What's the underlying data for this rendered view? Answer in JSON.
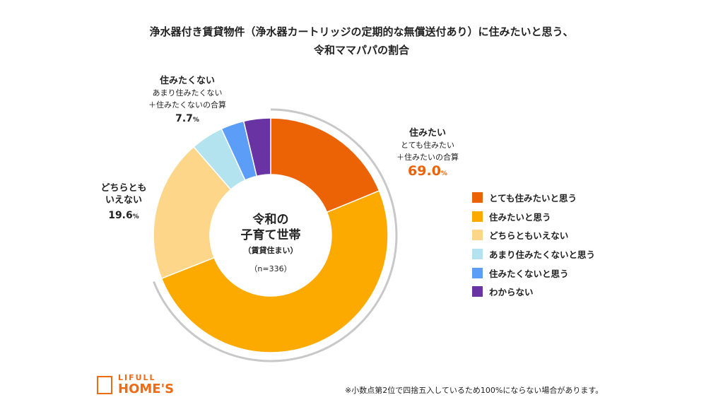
{
  "title": [
    "浄水器付き賃貸物件（浄水器カートリッジの定期的な無償送付あり）に住みたいと思う、",
    "令和ママパパの割合"
  ],
  "center": {
    "line1": "令和の",
    "line2": "子育て世帯",
    "line3": "（賃貸住まい）",
    "n": "（n=336）"
  },
  "callouts": {
    "want": {
      "title": "住みたい",
      "sub1": "とても住みたい",
      "sub2": "＋住みたいの合算",
      "value": "69.0",
      "unit": "%"
    },
    "neutral": {
      "title1": "どちらとも",
      "title2": "いえない",
      "value": "19.6",
      "unit": "%"
    },
    "not": {
      "title": "住みたくない",
      "sub1": "あまり住みたくない",
      "sub2": "＋住みたくないの合算",
      "value": "7.7",
      "unit": "%"
    }
  },
  "footnote": "※小数点第2位で四捨五入しているため100%にならない場合があります。",
  "logo": {
    "top": "LIFULL",
    "bottom": "HOME'S"
  },
  "chart_data": {
    "type": "pie",
    "donut": true,
    "categories": [
      "とても住みたいと思う",
      "住みたいと思う",
      "どちらともいえない",
      "あまり住みたくないと思う",
      "住みたくないと思う",
      "わからない"
    ],
    "values": [
      18.8,
      50.2,
      19.6,
      4.5,
      3.2,
      3.7
    ],
    "colors": [
      "#ec6305",
      "#fcaa00",
      "#fdd68a",
      "#b3e3ee",
      "#5c9df7",
      "#6933a4"
    ],
    "legend": "right",
    "highlight_arc_color": "#c8c8c8"
  }
}
